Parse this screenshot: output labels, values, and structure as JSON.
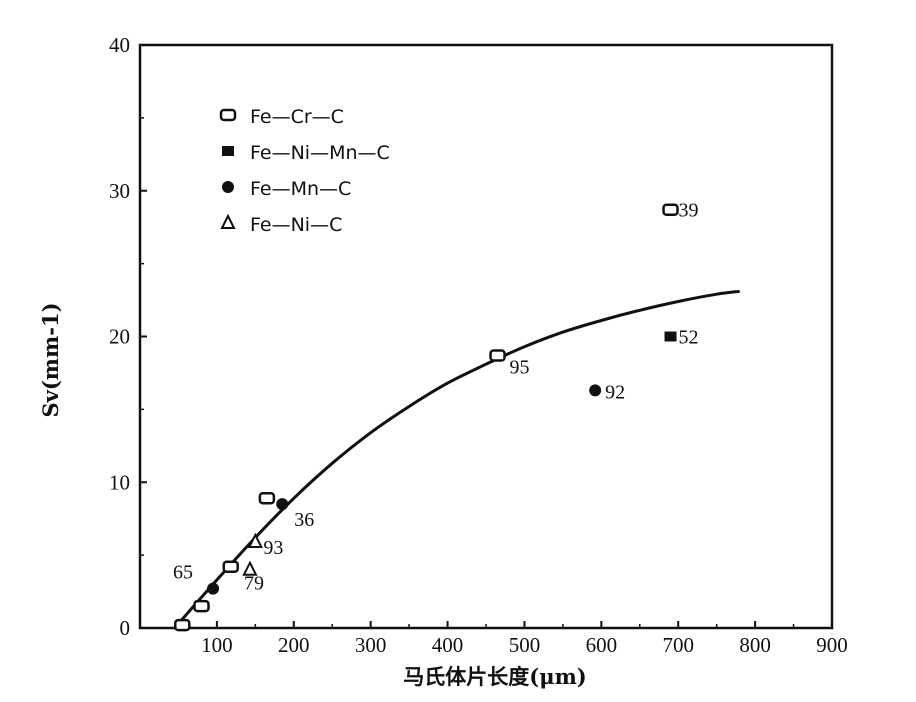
{
  "chart_data": {
    "type": "scatter",
    "xlabel": "马氏体片长度(μm)",
    "ylabel": "Sv(mm-1)",
    "xlim": [
      0,
      900
    ],
    "ylim": [
      0,
      40
    ],
    "x_ticks": [
      "100",
      "200",
      "300",
      "400",
      "500",
      "600",
      "700",
      "800",
      "900"
    ],
    "y_ticks": [
      "0",
      "10",
      "20",
      "30",
      "40"
    ],
    "grid": false,
    "legend_placement": "top-left",
    "series": [
      {
        "name": "Fe—Cr—C",
        "marker": "open-rectangle",
        "points": [
          {
            "x": 55,
            "y": 0.2,
            "label": ""
          },
          {
            "x": 80,
            "y": 1.5,
            "label": ""
          },
          {
            "x": 118,
            "y": 4.2,
            "label": ""
          },
          {
            "x": 165,
            "y": 8.9,
            "label": ""
          },
          {
            "x": 465,
            "y": 18.7,
            "label": "95"
          },
          {
            "x": 690,
            "y": 28.7,
            "label": "39"
          }
        ]
      },
      {
        "name": "Fe—Ni—Mn—C",
        "marker": "filled-square",
        "points": [
          {
            "x": 690,
            "y": 20.0,
            "label": "52"
          }
        ]
      },
      {
        "name": "Fe—Mn—C",
        "marker": "filled-circle",
        "points": [
          {
            "x": 95,
            "y": 2.7,
            "label": "65"
          },
          {
            "x": 185,
            "y": 8.5,
            "label": "36"
          },
          {
            "x": 592,
            "y": 16.3,
            "label": "92"
          }
        ]
      },
      {
        "name": "Fe—Ni—C",
        "marker": "open-triangle",
        "points": [
          {
            "x": 143,
            "y": 4.0,
            "label": "79"
          },
          {
            "x": 150,
            "y": 5.9,
            "label": "93"
          }
        ]
      }
    ],
    "fit_curve": {
      "x": [
        45,
        100,
        150,
        200,
        250,
        300,
        350,
        400,
        450,
        500,
        550,
        600,
        650,
        700,
        750,
        780
      ],
      "y": [
        0,
        3.3,
        6.2,
        8.9,
        11.3,
        13.4,
        15.2,
        16.8,
        18.1,
        19.3,
        20.3,
        21.1,
        21.8,
        22.4,
        22.9,
        23.1
      ]
    }
  }
}
